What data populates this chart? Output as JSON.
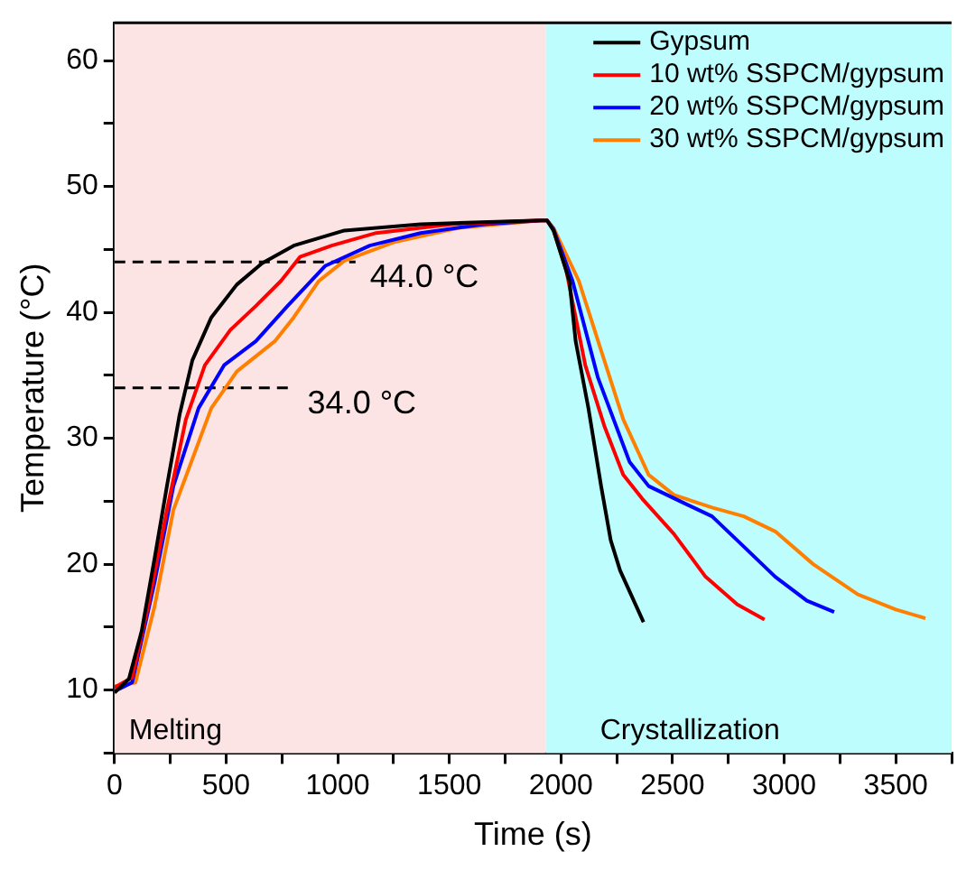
{
  "chart_data": {
    "type": "line",
    "xlabel": "Time (s)",
    "ylabel": "Temperature (°C)",
    "xlim": [
      0,
      3750
    ],
    "ylim": [
      5,
      63
    ],
    "xticks": [
      0,
      {
        "value": 250,
        "label": null
      },
      500,
      {
        "value": 750,
        "label": null
      },
      1000,
      {
        "value": 1250,
        "label": null
      },
      1500,
      {
        "value": 1750,
        "label": null
      },
      2000,
      {
        "value": 2250,
        "label": null
      },
      2500,
      {
        "value": 2750,
        "label": null
      },
      3000,
      {
        "value": 3250,
        "label": null
      },
      3500,
      {
        "value": 3750,
        "label": null
      }
    ],
    "yticks": [
      {
        "value": 5,
        "label": null
      },
      10,
      {
        "value": 15,
        "label": null
      },
      20,
      {
        "value": 25,
        "label": null
      },
      30,
      {
        "value": 35,
        "label": null
      },
      40,
      {
        "value": 45,
        "label": null
      },
      50,
      {
        "value": 55,
        "label": null
      },
      60
    ],
    "grid": false,
    "legend": "top right",
    "marker": "none",
    "line_style": "solid",
    "bands": [
      {
        "axis": "x",
        "from": 0,
        "to": 1933,
        "label": "Melting",
        "color": "#fde4e4"
      },
      {
        "axis": "x",
        "from": 1933,
        "to": 3750,
        "label": "Crystallization",
        "color": "#bdfdfd"
      }
    ],
    "annotations": [
      {
        "text": "44.0 °C",
        "x": 1080,
        "y": 44
      },
      {
        "text": "34.0 °C",
        "x": 800,
        "y": 34
      }
    ],
    "series": [
      {
        "name": "Gypsum",
        "color": "#000000",
        "x": [
          0,
          65,
          122,
          179,
          235,
          292,
          349,
          434,
          548,
          661,
          803,
          1030,
          1371,
          1910,
          1938,
          1967,
          2038,
          2066,
          2123,
          2180,
          2223,
          2265,
          2370
        ],
        "values": [
          9.8,
          10.9,
          14.7,
          20.4,
          26.2,
          31.9,
          36.2,
          39.6,
          42.2,
          43.9,
          45.3,
          46.5,
          47.0,
          47.3,
          47.3,
          46.5,
          42.5,
          37.7,
          32.4,
          26.2,
          21.9,
          19.5,
          15.4
        ]
      },
      {
        "name": "10 wt% SSPCM/gypsum",
        "color": "#ff0000",
        "x": [
          0,
          79,
          150,
          235,
          320,
          405,
          519,
          633,
          746,
          831,
          973,
          1172,
          1512,
          1910,
          1938,
          1967,
          2023,
          2109,
          2194,
          2279,
          2364,
          2506,
          2648,
          2790,
          2912
        ],
        "values": [
          10.2,
          11.0,
          16.6,
          24.3,
          31.5,
          35.8,
          38.6,
          40.5,
          42.5,
          44.4,
          45.3,
          46.3,
          47.0,
          47.3,
          47.3,
          46.5,
          43.4,
          35.8,
          31.0,
          27.1,
          25.2,
          22.4,
          19.0,
          16.8,
          15.6
        ]
      },
      {
        "name": "20 wt% SSPCM/gypsum",
        "color": "#0000ff",
        "x": [
          0,
          79,
          179,
          264,
          377,
          491,
          633,
          775,
          945,
          1144,
          1371,
          1655,
          1910,
          1938,
          1967,
          2052,
          2166,
          2308,
          2393,
          2534,
          2677,
          2819,
          2960,
          3102,
          3224
        ],
        "values": [
          9.9,
          10.6,
          18.5,
          26.2,
          32.4,
          35.8,
          37.7,
          40.5,
          43.7,
          45.3,
          46.3,
          47.0,
          47.3,
          47.3,
          46.6,
          42.5,
          34.8,
          28.1,
          26.2,
          25.0,
          23.8,
          21.4,
          19.0,
          17.1,
          16.2
        ]
      },
      {
        "name": "30 wt% SSPCM/gypsum",
        "color": "#ff8000",
        "x": [
          0,
          94,
          179,
          264,
          434,
          548,
          718,
          803,
          916,
          1030,
          1257,
          1541,
          1910,
          1938,
          1967,
          2080,
          2194,
          2279,
          2393,
          2506,
          2677,
          2819,
          2960,
          3130,
          3330,
          3500,
          3633
        ],
        "values": [
          10.3,
          10.6,
          16.6,
          24.3,
          32.4,
          35.3,
          37.7,
          39.6,
          42.5,
          44.1,
          45.6,
          46.7,
          47.3,
          47.3,
          46.7,
          42.5,
          36.2,
          31.5,
          27.1,
          25.5,
          24.5,
          23.8,
          22.6,
          20.0,
          17.6,
          16.4,
          15.7
        ]
      },
      {
        "color": "#000000",
        "line_style": "dashed",
        "x": [
          0,
          1080
        ],
        "values": [
          44,
          44
        ]
      },
      {
        "color": "#000000",
        "line_style": "dashed",
        "x": [
          0,
          800
        ],
        "values": [
          34,
          34
        ]
      }
    ]
  }
}
